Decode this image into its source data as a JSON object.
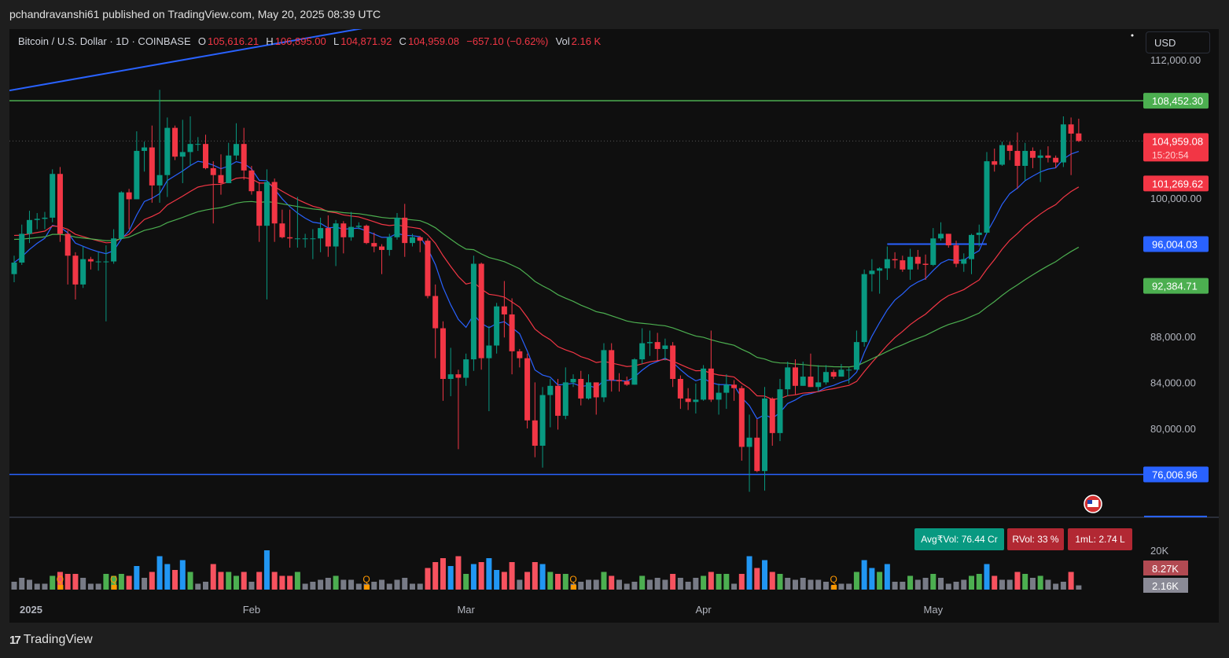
{
  "header": {
    "published": "pchandravanshi61 published on TradingView.com, May 20, 2025 08:39 UTC"
  },
  "legend": {
    "symbol": "Bitcoin / U.S. Dollar · 1D · COINBASE",
    "o_label": "O",
    "o": "105,616.21",
    "h_label": "H",
    "h": "106,895.00",
    "l_label": "L",
    "l": "104,871.92",
    "c_label": "C",
    "c": "104,959.08",
    "change": "−657.10 (−0.62%)",
    "vol_label": "Vol",
    "vol": "2.16 K"
  },
  "currency_button": "USD",
  "indicators": {
    "avgvol": "Avg₹Vol: 76.44 Cr",
    "rvol": "RVol: 33 %",
    "ml": "1mL: 2.74 L"
  },
  "footer": {
    "brand": "TradingView",
    "logo_text": "17"
  },
  "colors": {
    "up": "#089981",
    "down": "#f23645",
    "ema_fast": "#2962ff",
    "ema_mid": "#f23645",
    "ema_slow": "#4caf50",
    "vol_blue": "#2196f3",
    "vol_green": "#4caf50",
    "vol_red": "#f7525f",
    "vol_gray": "#787b86",
    "quarter_marker": "#ff9800"
  },
  "chart_data": {
    "type": "candlestick",
    "symbol": "BTCUSD",
    "interval": "1D",
    "exchange": "COINBASE",
    "ylim": [
      72000,
      114000
    ],
    "y_ticks": [
      {
        "value": 112000,
        "label": "112,000.00"
      },
      {
        "value": 100000,
        "label": "100,000.00"
      },
      {
        "value": 88000,
        "label": "88,000.00"
      },
      {
        "value": 84000,
        "label": "84,000.00"
      },
      {
        "value": 80000,
        "label": "80,000.00"
      }
    ],
    "x_ticks": [
      {
        "date": "2025-01-01",
        "label": "2025"
      },
      {
        "date": "2025-02-01",
        "label": "Feb"
      },
      {
        "date": "2025-03-01",
        "label": "Mar"
      },
      {
        "date": "2025-04-01",
        "label": "Apr"
      },
      {
        "date": "2025-05-01",
        "label": "May"
      }
    ],
    "price_labels": [
      {
        "value": 108452.3,
        "label": "108,452.30",
        "color": "#4caf50"
      },
      {
        "value": 104959.08,
        "label": "104,959.08",
        "sub": "15:20:54",
        "color": "#f23645"
      },
      {
        "value": 101269.62,
        "label": "101,269.62",
        "color": "#f23645"
      },
      {
        "value": 96004.03,
        "label": "96,004.03",
        "color": "#2962ff"
      },
      {
        "value": 92384.71,
        "label": "92,384.71",
        "color": "#4caf50"
      },
      {
        "value": 76006.96,
        "label": "76,006.96",
        "color": "#2962ff"
      }
    ],
    "horizontal_lines": [
      {
        "value": 108452.3,
        "color": "#4caf50"
      },
      {
        "value": 76006.96,
        "color": "#2962ff"
      }
    ],
    "segments": [
      {
        "from": [
          "2025-04-25",
          96004.03
        ],
        "to": [
          "2025-05-08",
          96004.03
        ],
        "color": "#2962ff"
      }
    ],
    "trendline": {
      "from": [
        "2024-12-31",
        109300
      ],
      "to": [
        "2025-02-16",
        114800
      ],
      "color": "#2962ff"
    },
    "volume_axis": {
      "ylim": [
        0,
        20
      ],
      "unit": "K",
      "ticks": [
        {
          "value": 20,
          "label": "20K"
        }
      ],
      "labels": [
        {
          "label": "8.27K",
          "color": "#b24a52"
        },
        {
          "label": "2.16K",
          "color": "#8a8a96"
        }
      ]
    },
    "quarter_markers": {
      "label": "Q",
      "dates": [
        "2025-01-07",
        "2025-01-14",
        "2025-02-16",
        "2025-03-15",
        "2025-04-18"
      ]
    },
    "candles_columns": [
      "date",
      "open",
      "high",
      "low",
      "close",
      "volume_k"
    ],
    "candles": [
      [
        "2025-01-01",
        93400,
        95000,
        92700,
        94400,
        4
      ],
      [
        "2025-01-02",
        94400,
        97700,
        94200,
        96900,
        6
      ],
      [
        "2025-01-03",
        96900,
        98900,
        96100,
        98100,
        5
      ],
      [
        "2025-01-04",
        98100,
        98700,
        97300,
        98200,
        3
      ],
      [
        "2025-01-05",
        98200,
        98800,
        97300,
        98300,
        3
      ],
      [
        "2025-01-06",
        98300,
        102500,
        97900,
        102100,
        7
      ],
      [
        "2025-01-07",
        102100,
        102700,
        96200,
        96900,
        9
      ],
      [
        "2025-01-08",
        96900,
        97200,
        92500,
        95000,
        8
      ],
      [
        "2025-01-09",
        95000,
        95300,
        91200,
        92500,
        8
      ],
      [
        "2025-01-10",
        92500,
        95800,
        92200,
        94700,
        6
      ],
      [
        "2025-01-11",
        94700,
        94900,
        93800,
        94500,
        3
      ],
      [
        "2025-01-12",
        94500,
        95300,
        93700,
        94500,
        3
      ],
      [
        "2025-01-13",
        94500,
        95900,
        89300,
        94500,
        8
      ],
      [
        "2025-01-14",
        94500,
        97300,
        94300,
        96500,
        7
      ],
      [
        "2025-01-15",
        96500,
        100600,
        96500,
        100500,
        8
      ],
      [
        "2025-01-16",
        100500,
        100800,
        97300,
        99900,
        7
      ],
      [
        "2025-01-17",
        99900,
        105800,
        99900,
        104100,
        12
      ],
      [
        "2025-01-18",
        104100,
        104900,
        102300,
        104400,
        6
      ],
      [
        "2025-01-19",
        104400,
        106300,
        99600,
        101100,
        9
      ],
      [
        "2025-01-20",
        101100,
        109400,
        99600,
        102000,
        17
      ],
      [
        "2025-01-21",
        102000,
        107000,
        100100,
        106100,
        13
      ],
      [
        "2025-01-22",
        106100,
        106300,
        103300,
        103600,
        10
      ],
      [
        "2025-01-23",
        103600,
        106800,
        101300,
        104000,
        15
      ],
      [
        "2025-01-24",
        104000,
        107100,
        102800,
        104700,
        9
      ],
      [
        "2025-01-25",
        104700,
        105300,
        104100,
        104700,
        3
      ],
      [
        "2025-01-26",
        104700,
        105500,
        102500,
        102600,
        4
      ],
      [
        "2025-01-27",
        102600,
        103200,
        97800,
        102000,
        13
      ],
      [
        "2025-01-28",
        102000,
        103800,
        100300,
        101300,
        9
      ],
      [
        "2025-01-29",
        101300,
        104800,
        101300,
        103700,
        9
      ],
      [
        "2025-01-30",
        103700,
        106500,
        103300,
        104700,
        7
      ],
      [
        "2025-01-31",
        104700,
        106100,
        101600,
        102400,
        9
      ],
      [
        "2025-02-01",
        102400,
        102800,
        100300,
        100600,
        4
      ],
      [
        "2025-02-02",
        100600,
        101400,
        96200,
        97600,
        9
      ],
      [
        "2025-02-03",
        97600,
        102500,
        91200,
        101400,
        20
      ],
      [
        "2025-02-04",
        101400,
        101700,
        96200,
        97800,
        9
      ],
      [
        "2025-02-05",
        97800,
        99000,
        96500,
        96600,
        7
      ],
      [
        "2025-02-06",
        96600,
        99000,
        95700,
        96500,
        7
      ],
      [
        "2025-02-07",
        96500,
        100100,
        95700,
        96500,
        9
      ],
      [
        "2025-02-08",
        96500,
        96900,
        95700,
        96500,
        3
      ],
      [
        "2025-02-09",
        96500,
        97300,
        94700,
        96500,
        4
      ],
      [
        "2025-02-10",
        96500,
        98300,
        95300,
        97400,
        5
      ],
      [
        "2025-02-11",
        97400,
        98500,
        94900,
        95800,
        6
      ],
      [
        "2025-02-12",
        95800,
        98100,
        94100,
        97800,
        7
      ],
      [
        "2025-02-13",
        97800,
        98000,
        95200,
        96600,
        5
      ],
      [
        "2025-02-14",
        96600,
        98800,
        96300,
        97500,
        5
      ],
      [
        "2025-02-15",
        97500,
        97900,
        97300,
        97600,
        3
      ],
      [
        "2025-02-16",
        97600,
        97700,
        96000,
        96100,
        3
      ],
      [
        "2025-02-17",
        96100,
        97000,
        95300,
        95800,
        4
      ],
      [
        "2025-02-18",
        95800,
        96000,
        93400,
        95500,
        5
      ],
      [
        "2025-02-19",
        95500,
        96900,
        95000,
        96600,
        3
      ],
      [
        "2025-02-20",
        96600,
        98700,
        96400,
        98300,
        5
      ],
      [
        "2025-02-21",
        98300,
        99500,
        94900,
        96100,
        6
      ],
      [
        "2025-02-22",
        96100,
        96900,
        95800,
        96600,
        3
      ],
      [
        "2025-02-23",
        96600,
        96700,
        95300,
        96300,
        3
      ],
      [
        "2025-02-24",
        96300,
        96500,
        91300,
        91500,
        11
      ],
      [
        "2025-02-25",
        91500,
        92500,
        86100,
        88700,
        14
      ],
      [
        "2025-02-26",
        88700,
        89300,
        82400,
        84300,
        16
      ],
      [
        "2025-02-27",
        84300,
        87000,
        82800,
        84700,
        12
      ],
      [
        "2025-02-28",
        84700,
        85100,
        78200,
        84400,
        17
      ],
      [
        "2025-03-01",
        84400,
        86500,
        83700,
        86000,
        8
      ],
      [
        "2025-03-02",
        86000,
        95000,
        85000,
        94300,
        13
      ],
      [
        "2025-03-03",
        94300,
        94400,
        85100,
        86100,
        14
      ],
      [
        "2025-03-04",
        86100,
        88900,
        81500,
        87200,
        16
      ],
      [
        "2025-03-05",
        87200,
        90900,
        86500,
        90600,
        10
      ],
      [
        "2025-03-06",
        90600,
        92800,
        87900,
        89900,
        9
      ],
      [
        "2025-03-07",
        89900,
        91300,
        84700,
        86700,
        14
      ],
      [
        "2025-03-08",
        86700,
        86900,
        85300,
        86100,
        5
      ],
      [
        "2025-03-09",
        86100,
        86500,
        80000,
        80700,
        9
      ],
      [
        "2025-03-10",
        80700,
        84000,
        77500,
        78500,
        14
      ],
      [
        "2025-03-11",
        78500,
        83600,
        76600,
        82900,
        13
      ],
      [
        "2025-03-12",
        82900,
        84300,
        80100,
        83700,
        9
      ],
      [
        "2025-03-13",
        83700,
        84300,
        79900,
        81100,
        8
      ],
      [
        "2025-03-14",
        81100,
        85300,
        80800,
        84000,
        8
      ],
      [
        "2025-03-15",
        84000,
        84700,
        83600,
        84300,
        3
      ],
      [
        "2025-03-16",
        84300,
        85000,
        82000,
        82600,
        4
      ],
      [
        "2025-03-17",
        82600,
        84700,
        82500,
        84000,
        5
      ],
      [
        "2025-03-18",
        84000,
        84000,
        81200,
        82700,
        5
      ],
      [
        "2025-03-19",
        82700,
        87400,
        82300,
        86800,
        9
      ],
      [
        "2025-03-20",
        86800,
        87400,
        83200,
        84200,
        7
      ],
      [
        "2025-03-21",
        84200,
        84800,
        83200,
        84100,
        5
      ],
      [
        "2025-03-22",
        84100,
        84500,
        83700,
        83800,
        3
      ],
      [
        "2025-03-23",
        83800,
        86100,
        83800,
        86000,
        4
      ],
      [
        "2025-03-24",
        86000,
        88700,
        85600,
        87400,
        7
      ],
      [
        "2025-03-25",
        87400,
        88500,
        86300,
        87500,
        5
      ],
      [
        "2025-03-26",
        87500,
        88300,
        85900,
        86900,
        6
      ],
      [
        "2025-03-27",
        86900,
        87800,
        85900,
        87200,
        5
      ],
      [
        "2025-03-28",
        87200,
        87500,
        83600,
        84300,
        8
      ],
      [
        "2025-03-29",
        84300,
        84600,
        81700,
        82600,
        6
      ],
      [
        "2025-03-30",
        82600,
        83500,
        81600,
        82300,
        4
      ],
      [
        "2025-03-31",
        82300,
        83900,
        81300,
        82500,
        6
      ],
      [
        "2025-04-01",
        82500,
        85500,
        82400,
        85200,
        7
      ],
      [
        "2025-04-02",
        85200,
        88500,
        82300,
        82500,
        9
      ],
      [
        "2025-04-03",
        82500,
        83900,
        81200,
        83100,
        8
      ],
      [
        "2025-04-04",
        83100,
        84700,
        81700,
        83800,
        8
      ],
      [
        "2025-04-05",
        83800,
        84200,
        82400,
        83500,
        3
      ],
      [
        "2025-04-06",
        83500,
        83700,
        77200,
        78400,
        8
      ],
      [
        "2025-04-07",
        78400,
        81200,
        74500,
        79200,
        17
      ],
      [
        "2025-04-08",
        79200,
        80800,
        76200,
        76300,
        11
      ],
      [
        "2025-04-09",
        76300,
        83600,
        74600,
        82600,
        15
      ],
      [
        "2025-04-10",
        82600,
        82700,
        78500,
        79600,
        9
      ],
      [
        "2025-04-11",
        79600,
        84300,
        78900,
        83400,
        8
      ],
      [
        "2025-04-12",
        83400,
        85800,
        82800,
        85300,
        6
      ],
      [
        "2025-04-13",
        85300,
        86000,
        82900,
        83700,
        5
      ],
      [
        "2025-04-14",
        83700,
        85800,
        83700,
        84500,
        6
      ],
      [
        "2025-04-15",
        84500,
        86500,
        83600,
        83600,
        5
      ],
      [
        "2025-04-16",
        83600,
        85500,
        83200,
        84000,
        5
      ],
      [
        "2025-04-17",
        84000,
        85500,
        83800,
        84900,
        4
      ],
      [
        "2025-04-18",
        84900,
        85100,
        84300,
        84500,
        2
      ],
      [
        "2025-04-19",
        84500,
        85600,
        84500,
        85100,
        3
      ],
      [
        "2025-04-20",
        85100,
        85300,
        83900,
        85100,
        3
      ],
      [
        "2025-04-21",
        85100,
        88500,
        85100,
        87500,
        9
      ],
      [
        "2025-04-22",
        87500,
        93800,
        87100,
        93400,
        15
      ],
      [
        "2025-04-23",
        93400,
        94700,
        91900,
        93700,
        11
      ],
      [
        "2025-04-24",
        93700,
        94000,
        91700,
        93900,
        9
      ],
      [
        "2025-04-25",
        93900,
        95800,
        92900,
        94700,
        13
      ],
      [
        "2025-04-26",
        94700,
        95300,
        93900,
        94600,
        4
      ],
      [
        "2025-04-27",
        94600,
        95000,
        93600,
        93800,
        4
      ],
      [
        "2025-04-28",
        93800,
        95600,
        92900,
        94900,
        7
      ],
      [
        "2025-04-29",
        94900,
        95500,
        93800,
        94300,
        5
      ],
      [
        "2025-04-30",
        94300,
        95100,
        92900,
        94200,
        6
      ],
      [
        "2025-05-01",
        94200,
        97400,
        94100,
        96500,
        8
      ],
      [
        "2025-05-02",
        96500,
        97900,
        96300,
        96900,
        6
      ],
      [
        "2025-05-03",
        96900,
        96900,
        95700,
        95900,
        3
      ],
      [
        "2025-05-04",
        95900,
        96300,
        94000,
        94300,
        4
      ],
      [
        "2025-05-05",
        94300,
        95200,
        93600,
        94700,
        5
      ],
      [
        "2025-05-06",
        94700,
        96900,
        93400,
        96800,
        7
      ],
      [
        "2025-05-07",
        96800,
        97700,
        95800,
        97000,
        8
      ],
      [
        "2025-05-08",
        97000,
        104000,
        96900,
        103200,
        13
      ],
      [
        "2025-05-09",
        103200,
        104300,
        102300,
        102900,
        7
      ],
      [
        "2025-05-10",
        102900,
        104900,
        102800,
        104600,
        5
      ],
      [
        "2025-05-11",
        104600,
        104900,
        103300,
        104100,
        5
      ],
      [
        "2025-05-12",
        104100,
        105700,
        100800,
        102800,
        9
      ],
      [
        "2025-05-13",
        102800,
        104800,
        101500,
        104100,
        8
      ],
      [
        "2025-05-14",
        104100,
        104400,
        102600,
        103500,
        6
      ],
      [
        "2025-05-15",
        103500,
        104200,
        101400,
        103700,
        7
      ],
      [
        "2025-05-16",
        103700,
        104500,
        103100,
        103500,
        5
      ],
      [
        "2025-05-17",
        103500,
        103700,
        102600,
        103100,
        3
      ],
      [
        "2025-05-18",
        103100,
        107100,
        102700,
        106400,
        4
      ],
      [
        "2025-05-19",
        106400,
        107000,
        102000,
        105600,
        9
      ],
      [
        "2025-05-20",
        105616.21,
        106895.0,
        104871.92,
        104959.08,
        2.16
      ]
    ]
  }
}
